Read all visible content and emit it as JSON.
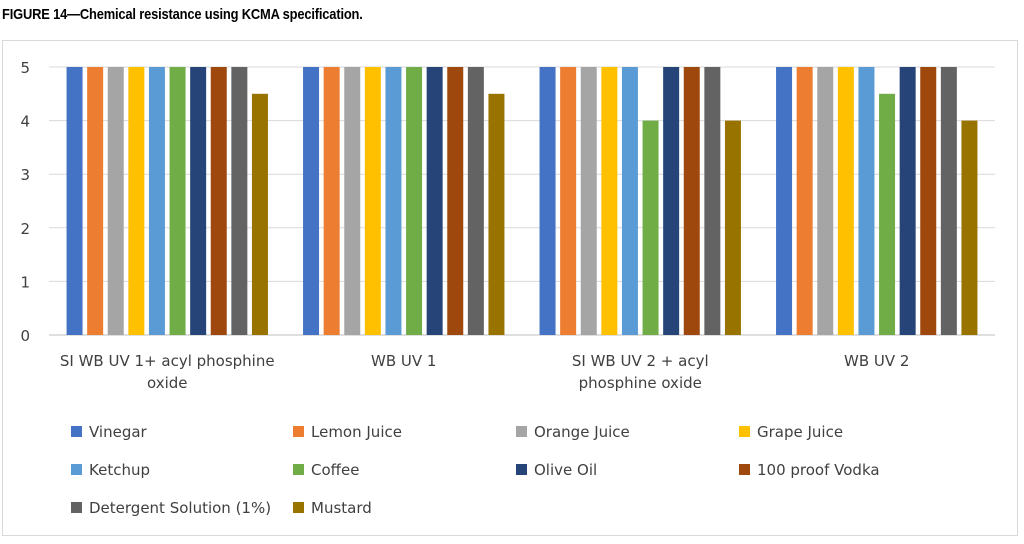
{
  "figure_title": "FIGURE 14—Chemical resistance using KCMA specification.",
  "chart_data": {
    "type": "bar",
    "categories": [
      [
        "SI WB UV 1+ acyl phosphine",
        "oxide"
      ],
      [
        "WB UV 1"
      ],
      [
        "SI WB UV 2 + acyl",
        "phosphine oxide"
      ],
      [
        "WB UV 2"
      ]
    ],
    "ylim": [
      0,
      5
    ],
    "yticks": [
      0,
      1,
      2,
      3,
      4,
      5
    ],
    "grid": true,
    "legend_position": "bottom",
    "series": [
      {
        "name": "Vinegar",
        "color": "#4472C4",
        "values": [
          5,
          5,
          5,
          5
        ]
      },
      {
        "name": "Lemon Juice",
        "color": "#ED7D31",
        "values": [
          5,
          5,
          5,
          5
        ]
      },
      {
        "name": "Orange Juice",
        "color": "#A5A5A5",
        "values": [
          5,
          5,
          5,
          5
        ]
      },
      {
        "name": "Grape Juice",
        "color": "#FFC000",
        "values": [
          5,
          5,
          5,
          5
        ]
      },
      {
        "name": "Ketchup",
        "color": "#5B9BD5",
        "values": [
          5,
          5,
          5,
          5
        ]
      },
      {
        "name": "Coffee",
        "color": "#70AD47",
        "values": [
          5,
          5,
          4,
          4.5
        ]
      },
      {
        "name": "Olive Oil",
        "color": "#264478",
        "values": [
          5,
          5,
          5,
          5
        ]
      },
      {
        "name": "100 proof Vodka",
        "color": "#9E480E",
        "values": [
          5,
          5,
          5,
          5
        ]
      },
      {
        "name": "Detergent Solution (1%)",
        "color": "#636363",
        "values": [
          5,
          5,
          5,
          5
        ]
      },
      {
        "name": "Mustard",
        "color": "#997300",
        "values": [
          4.5,
          4.5,
          4,
          4
        ]
      }
    ]
  }
}
